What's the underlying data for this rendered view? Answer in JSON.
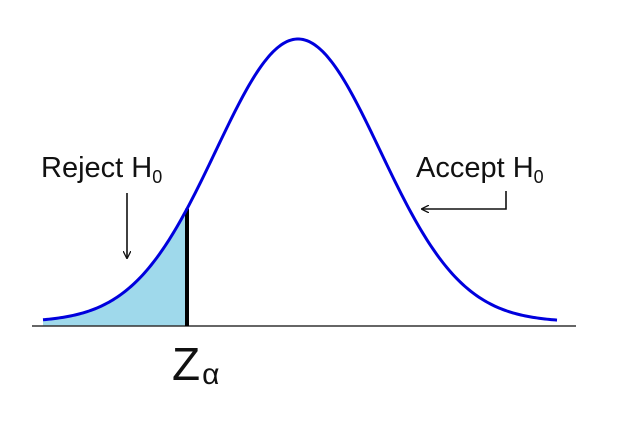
{
  "labels": {
    "reject": {
      "text": "Reject H",
      "subscript": "0"
    },
    "accept": {
      "text": "Accept H",
      "subscript": "0"
    },
    "critical": {
      "text": "Z",
      "subscript": "α"
    }
  },
  "colors": {
    "curve": "#0000dd",
    "rejection_region": "#9fd9eb",
    "axis": "#333333",
    "critical_line": "#000000",
    "arrows": "#111111",
    "text": "#111111"
  }
}
